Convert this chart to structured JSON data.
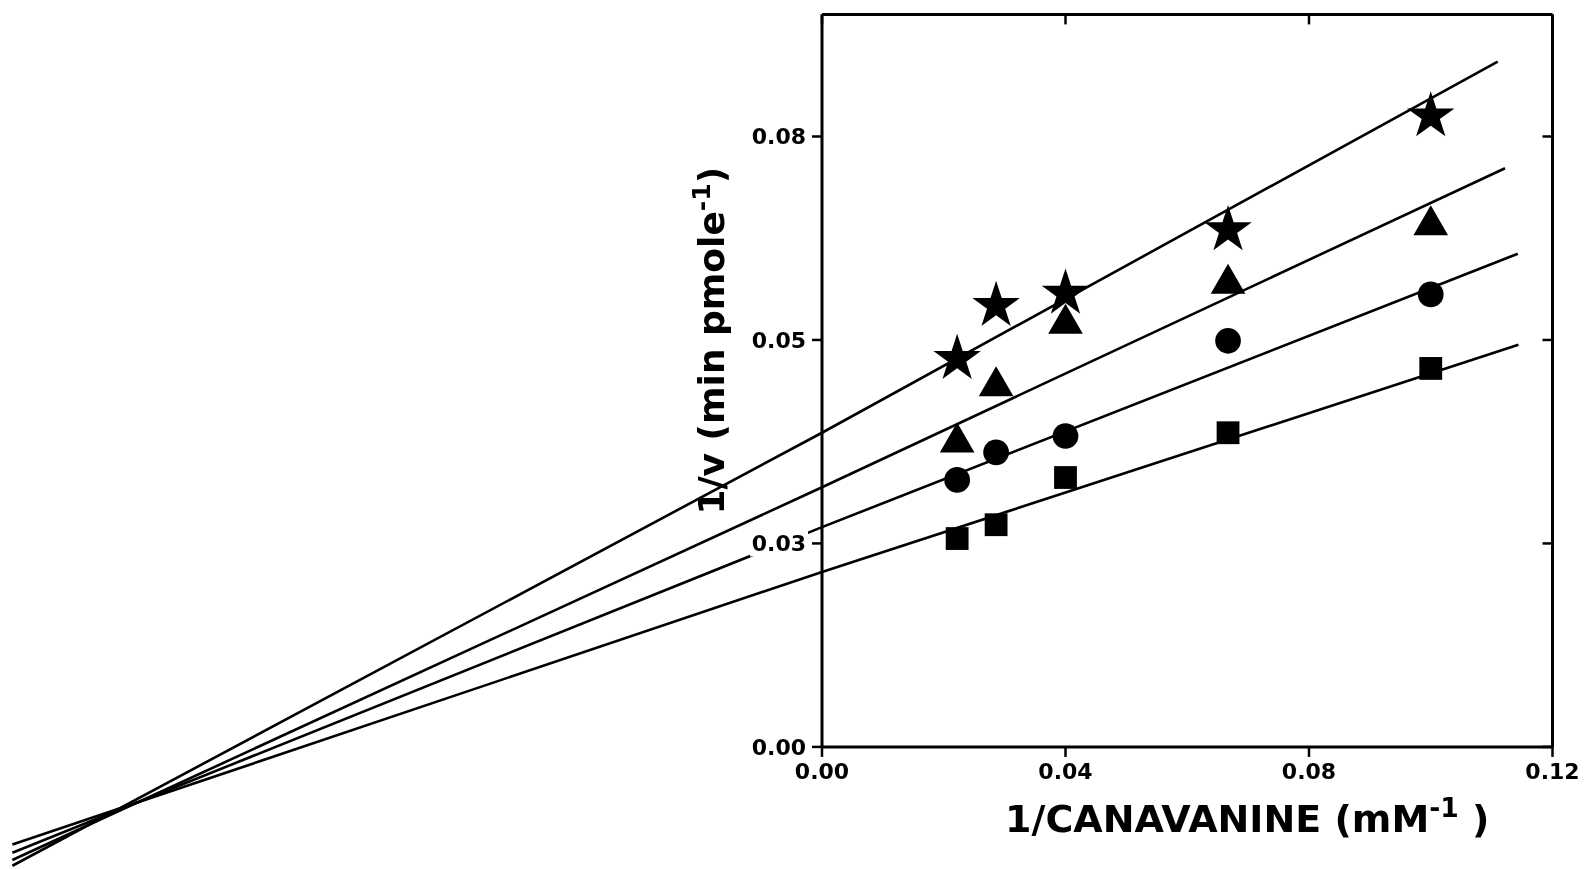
{
  "chart_data": {
    "type": "scatter",
    "xlabel": "1/CANAVANINE (mM$^{-1}$ )",
    "ylabel": "1/v (min pmole$^{-1}$)",
    "xlim": [
      -0.135,
      0.12
    ],
    "ylim": [
      -0.015,
      0.09
    ],
    "xticks": [
      {
        "value": 0,
        "label": "0.00"
      },
      {
        "value": 0.04,
        "label": "0.04"
      },
      {
        "value": 0.08,
        "label": "0.08"
      },
      {
        "value": 0.12,
        "label": "0.12"
      }
    ],
    "yticks": [
      {
        "value": 0,
        "label": "0.00"
      },
      {
        "value": 0.025,
        "label": "0.03"
      },
      {
        "value": 0.05,
        "label": "0.05"
      },
      {
        "value": 0.075,
        "label": "0.08"
      }
    ],
    "ref_lines": [
      {
        "axis": "y",
        "value": 0
      }
    ],
    "x": [
      0.0222,
      0.0286,
      0.04,
      0.0667,
      0.1
    ],
    "series": [
      {
        "color": "#000000",
        "marker": "star",
        "values": [
          0.0477,
          0.0542,
          0.0557,
          0.0635,
          0.0775
        ]
      },
      {
        "color": "#000000",
        "marker": "triangle",
        "values": [
          0.0374,
          0.0443,
          0.052,
          0.0569,
          0.0641
        ]
      },
      {
        "color": "#000000",
        "marker": "circle",
        "values": [
          0.0328,
          0.0362,
          0.0382,
          0.0499,
          0.0556
        ]
      },
      {
        "color": "#000000",
        "marker": "square",
        "values": [
          0.0256,
          0.0273,
          0.0331,
          0.0386,
          0.0465
        ]
      },
      {
        "type": "line",
        "color": "#000000",
        "marker": "none",
        "x": [
          -0.133,
          0,
          0.111
        ],
        "values": [
          -0.0146,
          0.0386,
          0.0842
        ]
      },
      {
        "type": "line",
        "color": "#000000",
        "marker": "none",
        "x": [
          -0.133,
          0,
          0.1122
        ],
        "values": [
          -0.0139,
          0.0319,
          0.0711
        ]
      },
      {
        "type": "line",
        "color": "#000000",
        "marker": "none",
        "x": [
          -0.133,
          0,
          0.1143
        ],
        "values": [
          -0.013,
          0.027,
          0.0606
        ]
      },
      {
        "type": "line",
        "color": "#000000",
        "marker": "none",
        "x": [
          -0.133,
          0,
          0.1144
        ],
        "values": [
          -0.012,
          0.0215,
          0.0494
        ]
      }
    ]
  }
}
